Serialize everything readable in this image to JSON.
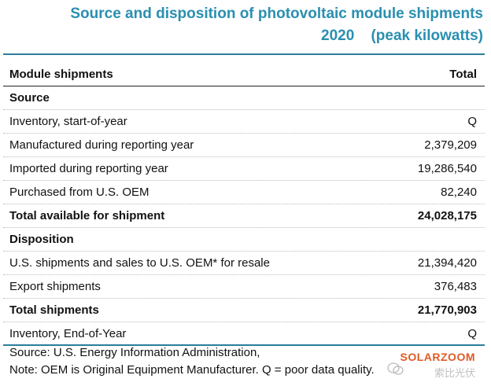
{
  "title": {
    "line1": "Source and disposition of photovoltaic module shipments",
    "year": "2020",
    "units": "(peak kilowatts)"
  },
  "table": {
    "header": {
      "label": "Module shipments",
      "value": "Total"
    },
    "rows": [
      {
        "label": "Source",
        "value": "",
        "kind": "section"
      },
      {
        "label": "Inventory, start-of-year",
        "value": "Q",
        "kind": "data"
      },
      {
        "label": "Manufactured during reporting year",
        "value": "2,379,209",
        "kind": "data"
      },
      {
        "label": "Imported during reporting year",
        "value": "19,286,540",
        "kind": "data"
      },
      {
        "label": "Purchased from U.S. OEM",
        "value": "82,240",
        "kind": "data"
      },
      {
        "label": "Total available for shipment",
        "value": "24,028,175",
        "kind": "total"
      },
      {
        "label": "Disposition",
        "value": "",
        "kind": "section"
      },
      {
        "label": "U.S. shipments and sales to U.S. OEM* for resale",
        "value": "21,394,420",
        "kind": "data"
      },
      {
        "label": "Export shipments",
        "value": "376,483",
        "kind": "data"
      },
      {
        "label": "Total shipments",
        "value": "21,770,903",
        "kind": "total"
      },
      {
        "label": "Inventory, End-of-Year",
        "value": "Q",
        "kind": "data"
      }
    ]
  },
  "footer": {
    "source": "Source: U.S. Energy Information Administration,",
    "note": "Note: OEM is Original Equipment Manufacturer. Q = poor data quality."
  },
  "watermark": {
    "brand": "SOLARZOOM",
    "cn": "索比光伏",
    "icon": "wechat-icon"
  },
  "colors": {
    "title": "#2a8fb0",
    "rule": "#2b7d9b",
    "watermark_brand": "#e05a25"
  }
}
